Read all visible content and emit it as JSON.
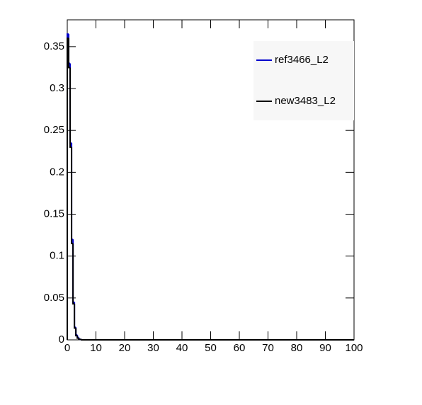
{
  "chart_data": {
    "type": "histogram",
    "bins": [
      0,
      0.5,
      1,
      1.5,
      2,
      2.5,
      3,
      3.5,
      4,
      4.5,
      5,
      100
    ],
    "series": [
      {
        "name": "ref3466_L2",
        "color": "#0000cc",
        "values": [
          0.365,
          0.33,
          0.235,
          0.12,
          0.045,
          0.015,
          0.006,
          0.003,
          0.001,
          0.0005,
          0
        ]
      },
      {
        "name": "new3483_L2",
        "color": "#000000",
        "values": [
          0.36,
          0.325,
          0.23,
          0.115,
          0.043,
          0.014,
          0.005,
          0.002,
          0.001,
          0.0005,
          0
        ]
      }
    ],
    "xlim": [
      0,
      100
    ],
    "xticks": [
      0,
      10,
      20,
      30,
      40,
      50,
      60,
      70,
      80,
      90,
      100
    ],
    "ylim": [
      0,
      0.382
    ],
    "yticks": [
      0,
      0.05,
      0.1,
      0.15,
      0.2,
      0.25,
      0.3,
      0.35
    ],
    "legend": "top-right"
  }
}
